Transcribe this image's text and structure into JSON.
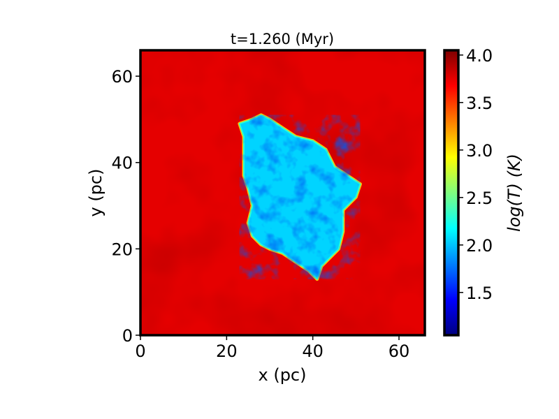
{
  "chart_data": {
    "type": "heatmap",
    "title": "t=1.260 (Myr)",
    "xlabel": "x (pc)",
    "ylabel": "y (pc)",
    "xlim": [
      0,
      66
    ],
    "ylim": [
      0,
      66
    ],
    "xticks": [
      0,
      20,
      40,
      60
    ],
    "yticks": [
      0,
      20,
      40,
      60
    ],
    "colorbar": {
      "label": "log(T) (K)",
      "range": [
        1.05,
        4.05
      ],
      "ticks": [
        1.5,
        2.0,
        2.5,
        3.0,
        3.5,
        4.0
      ],
      "tick_labels": [
        "1.5",
        "2.0",
        "2.5",
        "3.0",
        "3.5",
        "4.0"
      ],
      "colormap": "jet"
    },
    "field": {
      "background_logT": 3.75,
      "cold_cloud": {
        "logT_range": [
          1.3,
          2.5
        ],
        "outline_pc": [
          [
            23,
            49
          ],
          [
            26,
            50
          ],
          [
            28,
            51
          ],
          [
            30,
            50
          ],
          [
            33,
            48
          ],
          [
            36,
            46
          ],
          [
            40,
            45
          ],
          [
            43,
            43
          ],
          [
            45,
            39
          ],
          [
            48,
            37
          ],
          [
            51,
            35
          ],
          [
            50,
            32
          ],
          [
            47,
            29
          ],
          [
            47,
            24
          ],
          [
            46,
            20
          ],
          [
            44,
            18
          ],
          [
            42,
            16
          ],
          [
            41,
            13
          ],
          [
            39,
            15
          ],
          [
            36,
            17
          ],
          [
            33,
            19
          ],
          [
            30,
            20
          ],
          [
            28,
            21
          ],
          [
            26,
            23
          ],
          [
            25,
            26
          ],
          [
            26,
            30
          ],
          [
            25,
            34
          ],
          [
            24,
            37
          ],
          [
            24,
            42
          ],
          [
            24,
            46
          ]
        ]
      }
    }
  }
}
